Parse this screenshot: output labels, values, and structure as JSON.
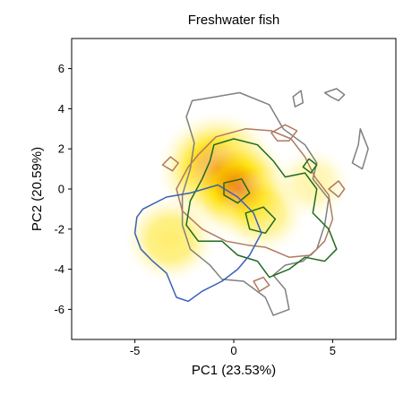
{
  "chart_data": {
    "type": "contour",
    "title": "Freshwater fish",
    "xlabel": "PC1 (23.53%)",
    "ylabel": "PC2 (20.59%)",
    "xlim": [
      -8.2,
      8.2
    ],
    "ylim": [
      -7.5,
      7.5
    ],
    "xticks": [
      -5,
      0,
      5
    ],
    "yticks": [
      -6,
      -4,
      -2,
      0,
      2,
      4,
      6
    ],
    "grid": false,
    "legend": "none",
    "colors": {
      "gray": "#7f7f7f",
      "brown": "#b07a62",
      "green": "#1e6b1e",
      "blue": "#3a5fb8",
      "density_high": "#e34a00",
      "density_mid": "#ffe000",
      "density_low": "#fff6b0"
    },
    "density_peaks": [
      {
        "x": -0.8,
        "y": 1.0,
        "level": 1.0
      },
      {
        "x": 0.3,
        "y": 0.0,
        "level": 0.8
      },
      {
        "x": -3.2,
        "y": -2.5,
        "level": 0.55
      },
      {
        "x": 1.5,
        "y": -1.2,
        "level": 0.45
      },
      {
        "x": 4.0,
        "y": 0.3,
        "level": 0.3
      }
    ],
    "series": [
      {
        "color": "gray",
        "paths": [
          [
            [
              -1.5,
              4.5
            ],
            [
              0.3,
              4.8
            ],
            [
              1.8,
              4.2
            ],
            [
              2.5,
              3.0
            ],
            [
              3.6,
              2.2
            ],
            [
              4.2,
              1.3
            ],
            [
              4.0,
              0.5
            ],
            [
              4.8,
              -0.5
            ],
            [
              4.6,
              -1.8
            ],
            [
              4.2,
              -3.0
            ],
            [
              3.5,
              -3.6
            ],
            [
              2.6,
              -3.8
            ],
            [
              2.0,
              -4.3
            ],
            [
              2.6,
              -5.0
            ],
            [
              2.8,
              -6.0
            ],
            [
              2.0,
              -6.3
            ],
            [
              1.6,
              -5.4
            ],
            [
              0.5,
              -4.6
            ],
            [
              -0.6,
              -4.5
            ],
            [
              -1.2,
              -3.8
            ],
            [
              -2.2,
              -3.0
            ],
            [
              -2.6,
              -1.8
            ],
            [
              -2.6,
              -0.3
            ],
            [
              -2.2,
              1.0
            ],
            [
              -2.0,
              2.3
            ],
            [
              -2.4,
              3.6
            ],
            [
              -2.1,
              4.4
            ],
            [
              -1.5,
              4.5
            ]
          ],
          [
            [
              4.6,
              4.8
            ],
            [
              5.2,
              5.0
            ],
            [
              5.6,
              4.7
            ],
            [
              5.3,
              4.4
            ],
            [
              4.9,
              4.6
            ],
            [
              4.6,
              4.8
            ]
          ],
          [
            [
              6.4,
              3.0
            ],
            [
              6.8,
              2.0
            ],
            [
              6.5,
              1.0
            ],
            [
              6.0,
              1.3
            ],
            [
              6.3,
              2.2
            ],
            [
              6.4,
              3.0
            ]
          ],
          [
            [
              3.0,
              4.6
            ],
            [
              3.4,
              4.9
            ],
            [
              3.5,
              4.3
            ],
            [
              3.1,
              4.1
            ],
            [
              3.0,
              4.6
            ]
          ]
        ]
      },
      {
        "color": "brown",
        "paths": [
          [
            [
              -2.3,
              1.1
            ],
            [
              -1.8,
              1.7
            ],
            [
              -0.9,
              2.6
            ],
            [
              0.6,
              3.0
            ],
            [
              1.9,
              2.9
            ],
            [
              2.9,
              2.5
            ],
            [
              3.6,
              1.6
            ],
            [
              4.1,
              0.6
            ],
            [
              4.8,
              -0.3
            ],
            [
              5.0,
              -1.5
            ],
            [
              4.6,
              -2.6
            ],
            [
              3.9,
              -3.3
            ],
            [
              2.8,
              -3.4
            ],
            [
              1.6,
              -2.9
            ],
            [
              0.7,
              -2.8
            ],
            [
              -0.4,
              -2.6
            ],
            [
              -1.6,
              -2.0
            ],
            [
              -2.6,
              -1.1
            ],
            [
              -2.9,
              0.0
            ],
            [
              -2.3,
              1.1
            ]
          ],
          [
            [
              -3.6,
              1.2
            ],
            [
              -3.2,
              1.6
            ],
            [
              -2.8,
              1.3
            ],
            [
              -3.1,
              0.9
            ],
            [
              -3.6,
              1.2
            ]
          ],
          [
            [
              1.9,
              2.8
            ],
            [
              2.6,
              3.2
            ],
            [
              3.2,
              2.9
            ],
            [
              2.8,
              2.4
            ],
            [
              2.2,
              2.4
            ],
            [
              1.9,
              2.8
            ]
          ],
          [
            [
              4.8,
              0.0
            ],
            [
              5.3,
              0.4
            ],
            [
              5.6,
              0.0
            ],
            [
              5.3,
              -0.4
            ],
            [
              4.8,
              0.0
            ]
          ],
          [
            [
              1.0,
              -4.6
            ],
            [
              1.5,
              -4.4
            ],
            [
              1.8,
              -4.8
            ],
            [
              1.3,
              -5.1
            ],
            [
              1.0,
              -4.6
            ]
          ]
        ]
      },
      {
        "color": "green",
        "paths": [
          [
            [
              -1.0,
              2.2
            ],
            [
              0.0,
              2.5
            ],
            [
              1.2,
              2.2
            ],
            [
              2.0,
              1.4
            ],
            [
              2.6,
              0.6
            ],
            [
              3.6,
              0.8
            ],
            [
              4.2,
              0.0
            ],
            [
              4.0,
              -1.2
            ],
            [
              4.8,
              -2.0
            ],
            [
              5.2,
              -3.0
            ],
            [
              4.6,
              -3.6
            ],
            [
              3.6,
              -3.4
            ],
            [
              2.8,
              -4.0
            ],
            [
              1.8,
              -4.4
            ],
            [
              1.2,
              -3.6
            ],
            [
              0.2,
              -3.3
            ],
            [
              -0.6,
              -2.6
            ],
            [
              -1.8,
              -2.6
            ],
            [
              -2.4,
              -1.8
            ],
            [
              -2.2,
              -0.6
            ],
            [
              -1.6,
              0.5
            ],
            [
              -1.2,
              1.4
            ],
            [
              -1.0,
              2.2
            ]
          ],
          [
            [
              3.5,
              1.1
            ],
            [
              3.8,
              1.5
            ],
            [
              4.2,
              1.2
            ],
            [
              3.9,
              0.8
            ],
            [
              3.5,
              1.1
            ]
          ],
          [
            [
              -0.5,
              0.3
            ],
            [
              0.4,
              0.5
            ],
            [
              0.8,
              -0.2
            ],
            [
              0.2,
              -0.7
            ],
            [
              -0.5,
              -0.3
            ],
            [
              -0.5,
              0.3
            ]
          ],
          [
            [
              0.6,
              -1.2
            ],
            [
              1.5,
              -0.9
            ],
            [
              2.1,
              -1.5
            ],
            [
              1.6,
              -2.2
            ],
            [
              0.8,
              -2.0
            ],
            [
              0.6,
              -1.2
            ]
          ]
        ]
      },
      {
        "color": "blue",
        "paths": [
          [
            [
              -4.6,
              -1.0
            ],
            [
              -3.4,
              -0.4
            ],
            [
              -2.2,
              -0.2
            ],
            [
              -0.8,
              0.2
            ],
            [
              0.2,
              -0.4
            ],
            [
              1.0,
              -1.2
            ],
            [
              1.4,
              -2.2
            ],
            [
              0.8,
              -3.3
            ],
            [
              0.2,
              -4.0
            ],
            [
              -0.6,
              -4.6
            ],
            [
              -1.6,
              -5.1
            ],
            [
              -2.3,
              -5.6
            ],
            [
              -2.9,
              -5.4
            ],
            [
              -3.4,
              -4.2
            ],
            [
              -4.1,
              -3.6
            ],
            [
              -4.7,
              -3.0
            ],
            [
              -5.0,
              -2.2
            ],
            [
              -4.9,
              -1.4
            ],
            [
              -4.6,
              -1.0
            ]
          ]
        ]
      }
    ]
  }
}
